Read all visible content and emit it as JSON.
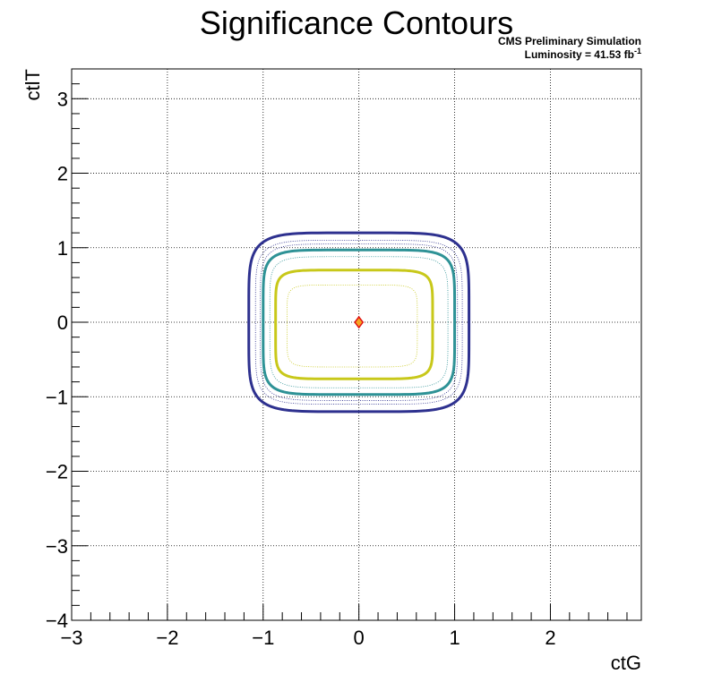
{
  "header": {
    "title": "Significance Contours",
    "cms_label": "CMS Preliminary Simulation",
    "lumi_label": "Luminosity = 41.53 fb",
    "lumi_superscript": "-1"
  },
  "chart_data": {
    "type": "contour",
    "title": "Significance Contours",
    "xlabel": "ctG",
    "ylabel": "ctlT",
    "xlim": [
      -3,
      2.95
    ],
    "ylim": [
      -4,
      3.4
    ],
    "xticks": [
      -3,
      -2,
      -1,
      0,
      1,
      2
    ],
    "yticks": [
      -4,
      -3,
      -2,
      -1,
      0,
      1,
      2,
      3
    ],
    "xtick_labels": [
      "−3",
      "−2",
      "−1",
      "0",
      "1",
      "2"
    ],
    "ytick_labels": [
      "−4",
      "−3",
      "−2",
      "−1",
      "0",
      "1",
      "2",
      "3"
    ],
    "grid": true,
    "contours": [
      {
        "level": 1,
        "style": "solid",
        "color": "#2e318f",
        "cx": 0.0,
        "cy": 0.0,
        "rx": 1.15,
        "ry": 1.2,
        "corner": 0.55
      },
      {
        "level": 2,
        "style": "dotted",
        "color": "#2e318f",
        "cx": 0.0,
        "cy": 0.0,
        "rx": 1.08,
        "ry": 1.1,
        "corner": 0.5
      },
      {
        "level": 3,
        "style": "dotted",
        "color": "#2e318f",
        "cx": 0.0,
        "cy": 0.0,
        "rx": 1.03,
        "ry": 1.05,
        "corner": 0.48
      },
      {
        "level": 4,
        "style": "solid",
        "color": "#2e9296",
        "cx": 0.0,
        "cy": 0.0,
        "rx": 1.0,
        "ry": 0.97,
        "corner": 0.45
      },
      {
        "level": 5,
        "style": "dotted",
        "color": "#2e9296",
        "cx": 0.0,
        "cy": 0.0,
        "rx": 0.93,
        "ry": 0.88,
        "corner": 0.42
      },
      {
        "level": 6,
        "style": "solid",
        "color": "#c8c81a",
        "cx": -0.05,
        "cy": -0.03,
        "rx": 0.82,
        "ry": 0.73,
        "corner": 0.38
      },
      {
        "level": 7,
        "style": "dotted",
        "color": "#c8c81a",
        "cx": -0.07,
        "cy": -0.05,
        "rx": 0.68,
        "ry": 0.55,
        "corner": 0.32
      }
    ],
    "best_fit": {
      "x": 0.0,
      "y": 0.0,
      "marker": "diamond",
      "fill": "#f5a623",
      "stroke": "#e01010"
    }
  }
}
